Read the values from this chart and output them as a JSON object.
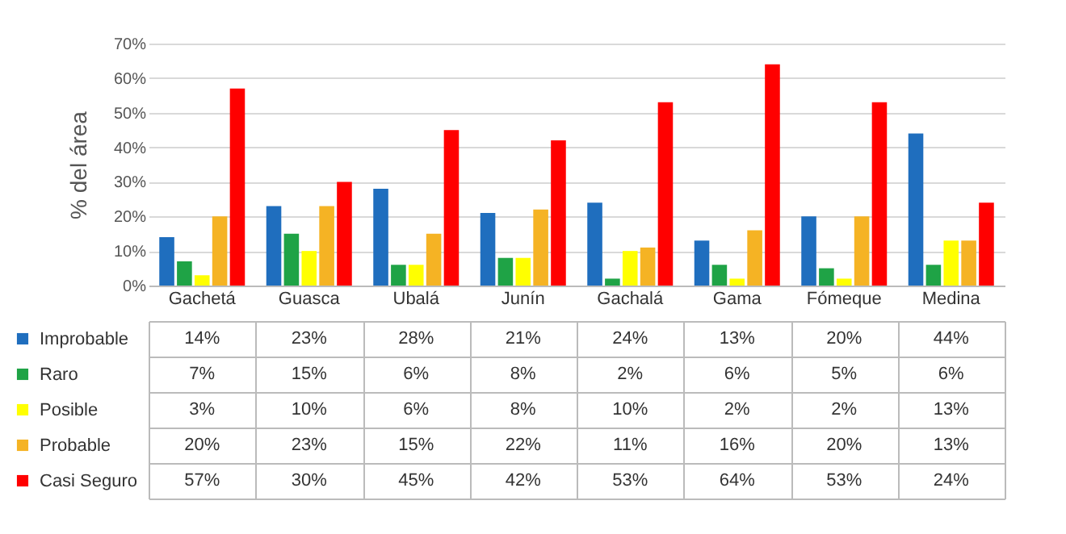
{
  "chart_data": {
    "type": "bar",
    "ylabel": "% del área",
    "categories": [
      "Gachetá",
      "Guasca",
      "Ubalá",
      "Junín",
      "Gachalá",
      "Gama",
      "Fómeque",
      "Medina"
    ],
    "series": [
      {
        "name": "Improbable",
        "color": "#1f6ebe",
        "values": [
          14,
          23,
          28,
          21,
          24,
          13,
          20,
          44
        ],
        "value_labels": [
          "14%",
          "23%",
          "28%",
          "21%",
          "24%",
          "13%",
          "20%",
          "44%"
        ]
      },
      {
        "name": "Raro",
        "color": "#1fa346",
        "values": [
          7,
          15,
          6,
          8,
          2,
          6,
          5,
          6
        ],
        "value_labels": [
          "7%",
          "15%",
          "6%",
          "8%",
          "2%",
          "6%",
          "5%",
          "6%"
        ]
      },
      {
        "name": "Posible",
        "color": "#ffff00",
        "values": [
          3,
          10,
          6,
          8,
          10,
          2,
          2,
          13
        ],
        "value_labels": [
          "3%",
          "10%",
          "6%",
          "8%",
          "10%",
          "2%",
          "2%",
          "13%"
        ]
      },
      {
        "name": "Probable",
        "color": "#f5b324",
        "values": [
          20,
          23,
          15,
          22,
          11,
          16,
          20,
          13
        ],
        "value_labels": [
          "20%",
          "23%",
          "15%",
          "22%",
          "11%",
          "16%",
          "20%",
          "13%"
        ]
      },
      {
        "name": "Casi Seguro",
        "color": "#ff0000",
        "values": [
          57,
          30,
          45,
          42,
          53,
          64,
          53,
          24
        ],
        "value_labels": [
          "57%",
          "30%",
          "45%",
          "42%",
          "53%",
          "64%",
          "53%",
          "24%"
        ]
      }
    ],
    "ylim": [
      0,
      70
    ],
    "yticks": [
      {
        "value": 0,
        "label": "0%"
      },
      {
        "value": 10,
        "label": "10%"
      },
      {
        "value": 20,
        "label": "20%"
      },
      {
        "value": 30,
        "label": "30%"
      },
      {
        "value": 40,
        "label": "40%"
      },
      {
        "value": 50,
        "label": "50%"
      },
      {
        "value": 60,
        "label": "60%"
      },
      {
        "value": 70,
        "label": "70%"
      }
    ],
    "grid": "y",
    "legend": "bottom"
  }
}
